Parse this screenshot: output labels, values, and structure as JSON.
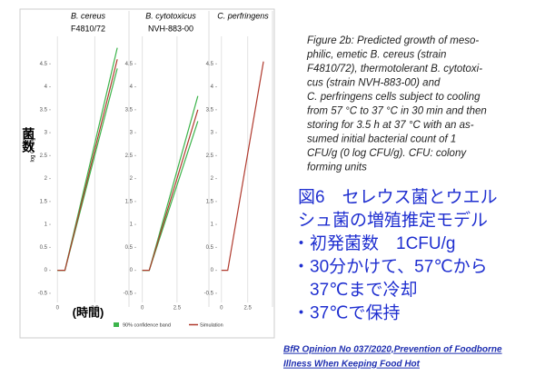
{
  "chart_data": [
    {
      "type": "line",
      "title": "B. cereus",
      "subtitle": "F4810/72",
      "x": [
        0,
        0.5,
        4
      ],
      "xlim": [
        -0.5,
        4.6
      ],
      "xticks": [
        0,
        2.5
      ],
      "ylim": [
        -0.7,
        5.1
      ],
      "yticks": [
        4.5,
        4,
        3.5,
        3,
        2.5,
        2,
        1.5,
        1,
        0.5,
        0,
        -0.5
      ],
      "grid": true,
      "series": [
        {
          "color": "#3cb44b",
          "values": [
            0,
            0,
            4.85
          ]
        },
        {
          "color": "#3cb44b",
          "values": [
            0,
            0,
            4.4
          ]
        },
        {
          "color": "#b03a2e",
          "values": [
            0,
            0,
            4.6
          ]
        }
      ]
    },
    {
      "type": "line",
      "title": "B. cytotoxicus",
      "subtitle": "NVH-883-00",
      "x": [
        0,
        0.5,
        4
      ],
      "xlim": [
        -0.5,
        4.6
      ],
      "xticks": [
        0,
        2.5
      ],
      "ylim": [
        -0.7,
        5.1
      ],
      "yticks": [
        4.5,
        4,
        3.5,
        3,
        2.5,
        2,
        1.5,
        1,
        0.5,
        0,
        -0.5
      ],
      "grid": true,
      "series": [
        {
          "color": "#3cb44b",
          "values": [
            0,
            0,
            3.8
          ]
        },
        {
          "color": "#3cb44b",
          "values": [
            0,
            0,
            3.25
          ]
        },
        {
          "color": "#b03a2e",
          "values": [
            0,
            0,
            3.5
          ]
        }
      ]
    },
    {
      "type": "line",
      "title": "C. perfringens",
      "x": [
        0,
        0.6,
        4
      ],
      "xlim": [
        -0.5,
        4.6
      ],
      "xticks": [
        0,
        2.5
      ],
      "ylim": [
        -0.7,
        5.1
      ],
      "yticks": [
        4.5,
        4,
        3.5,
        3,
        2.5,
        2,
        1.5,
        1,
        0.5,
        0,
        -0.5
      ],
      "grid": true,
      "series": [
        {
          "color": "#b03a2e",
          "values": [
            0,
            0,
            4.55
          ]
        }
      ]
    }
  ],
  "y_label": "log CFU/g",
  "y_label_ja": "菌数",
  "x_label_ja": "(時間)",
  "legend": [
    {
      "name": "90% confidence band",
      "color": "#3cb44b"
    },
    {
      "name": "Simulation",
      "color": "#b03a2e"
    }
  ],
  "caption": [
    "Figure 2b: Predicted growth of meso-",
    "philic, emetic B. cereus (strain",
    "F4810/72), thermotolerant B. cytotoxi-",
    "cus (strain NVH-883-00) and",
    "C. perfringens cells subject to cooling",
    "from 57 °C to 37 °C in 30 min and then",
    "storing for 3.5 h at 37 °C with an as-",
    "sumed initial bacterial count of 1",
    "CFU/g (0 log CFU/g). CFU: colony",
    "forming units"
  ],
  "note_ja": [
    "図6　セレウス菌とウエル",
    "シュ菌の増殖推定モデル",
    "・初発菌数　1CFU/g",
    "・30分かけて、57℃から",
    "　37℃まで冷却",
    "・37℃で保持"
  ],
  "reference": [
    "BfR Opinion No 037/2020,Prevention of Foodborne",
    "Illness When Keeping Food Hot"
  ]
}
